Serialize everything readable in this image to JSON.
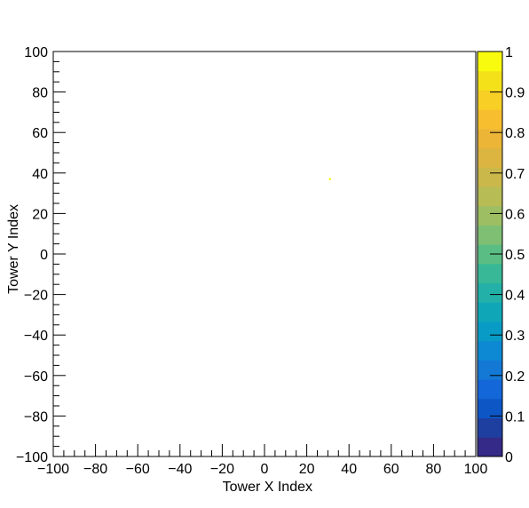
{
  "chart_data": {
    "type": "heatmap",
    "title": "",
    "xlabel": "Tower X Index",
    "ylabel": "Tower Y Index",
    "xlim": [
      -100,
      100
    ],
    "ylim": [
      -100,
      100
    ],
    "xticks": [
      "−100",
      "−80",
      "−60",
      "−40",
      "−20",
      "0",
      "20",
      "40",
      "60",
      "80",
      "100"
    ],
    "yticks": [
      "−100",
      "−80",
      "−60",
      "−40",
      "−20",
      "0",
      "20",
      "40",
      "60",
      "80",
      "100"
    ],
    "colorbar": {
      "range": [
        0,
        1
      ],
      "ticks": [
        "0",
        "0.1",
        "0.2",
        "0.3",
        "0.4",
        "0.5",
        "0.6",
        "0.7",
        "0.8",
        "0.9",
        "1"
      ],
      "palette": [
        "#352a87",
        "#1f3fa0",
        "#0d56c6",
        "#1467d8",
        "#1478d5",
        "#0d88d2",
        "#089bc6",
        "#0fa7b8",
        "#22b0a8",
        "#38b896",
        "#5abd84",
        "#7fbf73",
        "#9dbe63",
        "#b7bc55",
        "#cbb84a",
        "#dcb541",
        "#ecb537",
        "#f7bf2f",
        "#f8cf25",
        "#f4e119",
        "#f9fb0e"
      ]
    },
    "points": [
      {
        "x": 31,
        "y": 37,
        "value": 1.0
      }
    ],
    "grid": false
  }
}
